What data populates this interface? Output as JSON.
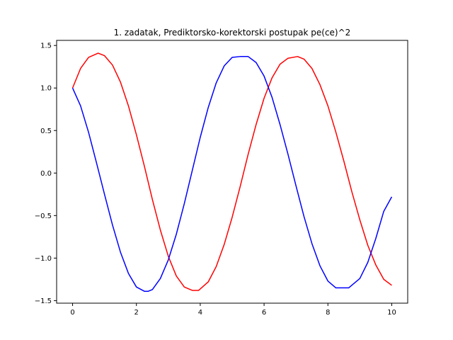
{
  "chart_data": {
    "type": "line",
    "title": "1. zadatak, Prediktorsko-korektorski postupak pe(ce)^2",
    "xlabel": "",
    "ylabel": "",
    "xlim": [
      -0.5,
      10.5
    ],
    "ylim": [
      -1.53,
      1.56
    ],
    "x_ticks": [
      0,
      2,
      4,
      6,
      8,
      10
    ],
    "x_tick_labels": [
      "0",
      "2",
      "4",
      "6",
      "8",
      "10"
    ],
    "y_ticks": [
      -1.5,
      -1.0,
      -0.5,
      0.0,
      0.5,
      1.0,
      1.5
    ],
    "y_tick_labels": [
      "−1.5",
      "−1.0",
      "−0.5",
      "0.0",
      "0.5",
      "1.0",
      "1.5"
    ],
    "grid": false,
    "legend": false,
    "series": [
      {
        "color": "#ff0000",
        "x": [
          0.0,
          0.25,
          0.5,
          0.8,
          1.0,
          1.25,
          1.5,
          1.75,
          2.0,
          2.25,
          2.5,
          2.75,
          3.0,
          3.25,
          3.5,
          3.75,
          3.95,
          4.25,
          4.5,
          4.75,
          5.0,
          5.25,
          5.5,
          5.75,
          6.0,
          6.25,
          6.5,
          6.75,
          7.05,
          7.25,
          7.5,
          7.75,
          8.0,
          8.25,
          8.5,
          8.75,
          9.0,
          9.25,
          9.5,
          9.75,
          10.0
        ],
        "y": [
          1.0,
          1.23,
          1.36,
          1.41,
          1.38,
          1.27,
          1.07,
          0.79,
          0.45,
          0.08,
          -0.31,
          -0.67,
          -0.98,
          -1.21,
          -1.34,
          -1.38,
          -1.38,
          -1.28,
          -1.1,
          -0.84,
          -0.52,
          -0.16,
          0.22,
          0.57,
          0.88,
          1.12,
          1.28,
          1.35,
          1.37,
          1.34,
          1.23,
          1.04,
          0.79,
          0.48,
          0.14,
          -0.22,
          -0.55,
          -0.85,
          -1.08,
          -1.25,
          -1.32
        ]
      },
      {
        "color": "#0000ff",
        "x": [
          0.0,
          0.25,
          0.5,
          0.75,
          1.0,
          1.25,
          1.5,
          1.75,
          2.0,
          2.25,
          2.37,
          2.5,
          2.75,
          3.0,
          3.25,
          3.5,
          3.75,
          4.0,
          4.25,
          4.5,
          4.75,
          5.0,
          5.25,
          5.5,
          5.75,
          6.0,
          6.25,
          6.5,
          6.75,
          7.0,
          7.25,
          7.5,
          7.75,
          8.0,
          8.25,
          8.5,
          8.65,
          9.0,
          9.25,
          9.5,
          9.75,
          10.0
        ],
        "y": [
          1.0,
          0.79,
          0.48,
          0.12,
          -0.25,
          -0.61,
          -0.93,
          -1.18,
          -1.34,
          -1.39,
          -1.39,
          -1.37,
          -1.24,
          -1.02,
          -0.72,
          -0.36,
          0.03,
          0.42,
          0.77,
          1.06,
          1.26,
          1.36,
          1.37,
          1.37,
          1.3,
          1.14,
          0.89,
          0.57,
          0.22,
          -0.15,
          -0.51,
          -0.83,
          -1.09,
          -1.27,
          -1.35,
          -1.35,
          -1.35,
          -1.24,
          -1.05,
          -0.77,
          -0.45,
          -0.28
        ]
      }
    ]
  }
}
